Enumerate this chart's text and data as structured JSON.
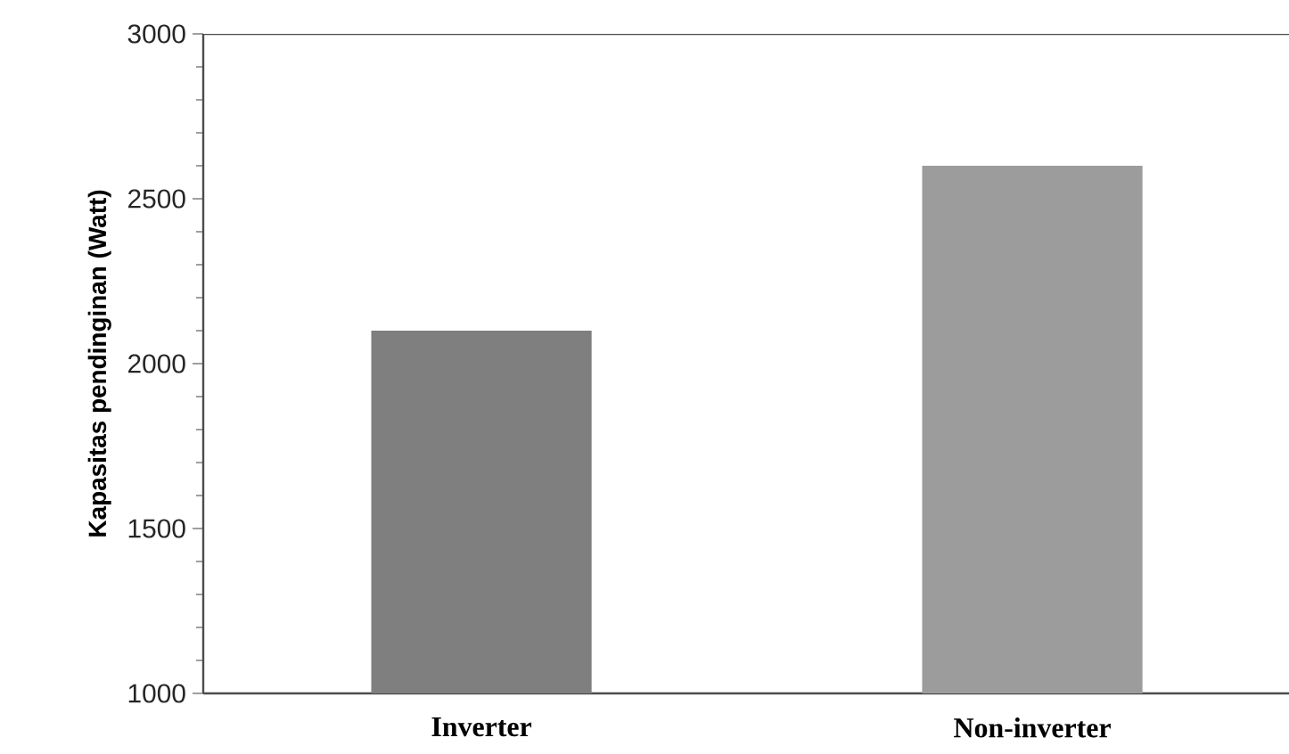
{
  "chart_data": {
    "type": "bar",
    "ylabel": "Kapasitas pendinginan (Watt)",
    "categories": [
      "Inverter",
      "Non-inverter"
    ],
    "values": [
      2100,
      2600
    ],
    "colors": [
      "#7f7f7f",
      "#9c9c9c"
    ],
    "ylim": [
      1000,
      3000
    ],
    "yticks": [
      1000,
      1500,
      2000,
      2500,
      3000
    ]
  }
}
